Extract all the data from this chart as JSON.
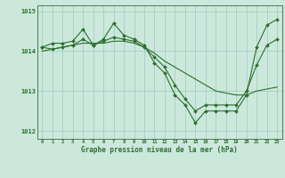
{
  "xlabel": "Graphe pression niveau de la mer (hPa)",
  "background_color": "#cce8dc",
  "grid_color": "#99ccbb",
  "line_color": "#2d6e2d",
  "markersize": 2.0,
  "linewidth": 0.8,
  "hours": [
    0,
    1,
    2,
    3,
    4,
    5,
    6,
    7,
    8,
    9,
    10,
    11,
    12,
    13,
    14,
    15,
    16,
    17,
    18,
    19,
    20,
    21,
    22,
    23
  ],
  "series1": [
    1014.1,
    1014.2,
    1014.2,
    1014.25,
    1014.55,
    1014.15,
    1014.3,
    1014.7,
    1014.4,
    1014.3,
    1014.15,
    1013.7,
    1013.45,
    1012.9,
    1012.65,
    1012.2,
    1012.5,
    1012.5,
    1012.5,
    1012.5,
    1012.9,
    1014.1,
    1014.65,
    1014.8
  ],
  "series2": [
    1014.0,
    1014.05,
    1014.1,
    1014.15,
    1014.2,
    1014.2,
    1014.2,
    1014.25,
    1014.25,
    1014.2,
    1014.1,
    1013.95,
    1013.75,
    1013.6,
    1013.45,
    1013.3,
    1013.15,
    1013.0,
    1012.95,
    1012.9,
    1012.9,
    1013.0,
    1013.05,
    1013.1
  ],
  "series3": [
    1014.1,
    1014.05,
    1014.1,
    1014.15,
    1014.3,
    1014.15,
    1014.25,
    1014.35,
    1014.3,
    1014.25,
    1014.1,
    1013.85,
    1013.6,
    1013.15,
    1012.8,
    1012.5,
    1012.65,
    1012.65,
    1012.65,
    1012.65,
    1013.0,
    1013.65,
    1014.15,
    1014.3
  ],
  "ylim": [
    1011.8,
    1015.15
  ],
  "yticks": [
    1012,
    1013,
    1014,
    1015
  ],
  "xticks": [
    0,
    1,
    2,
    3,
    4,
    5,
    6,
    7,
    8,
    9,
    10,
    11,
    12,
    13,
    14,
    15,
    16,
    17,
    18,
    19,
    20,
    21,
    22,
    23
  ]
}
